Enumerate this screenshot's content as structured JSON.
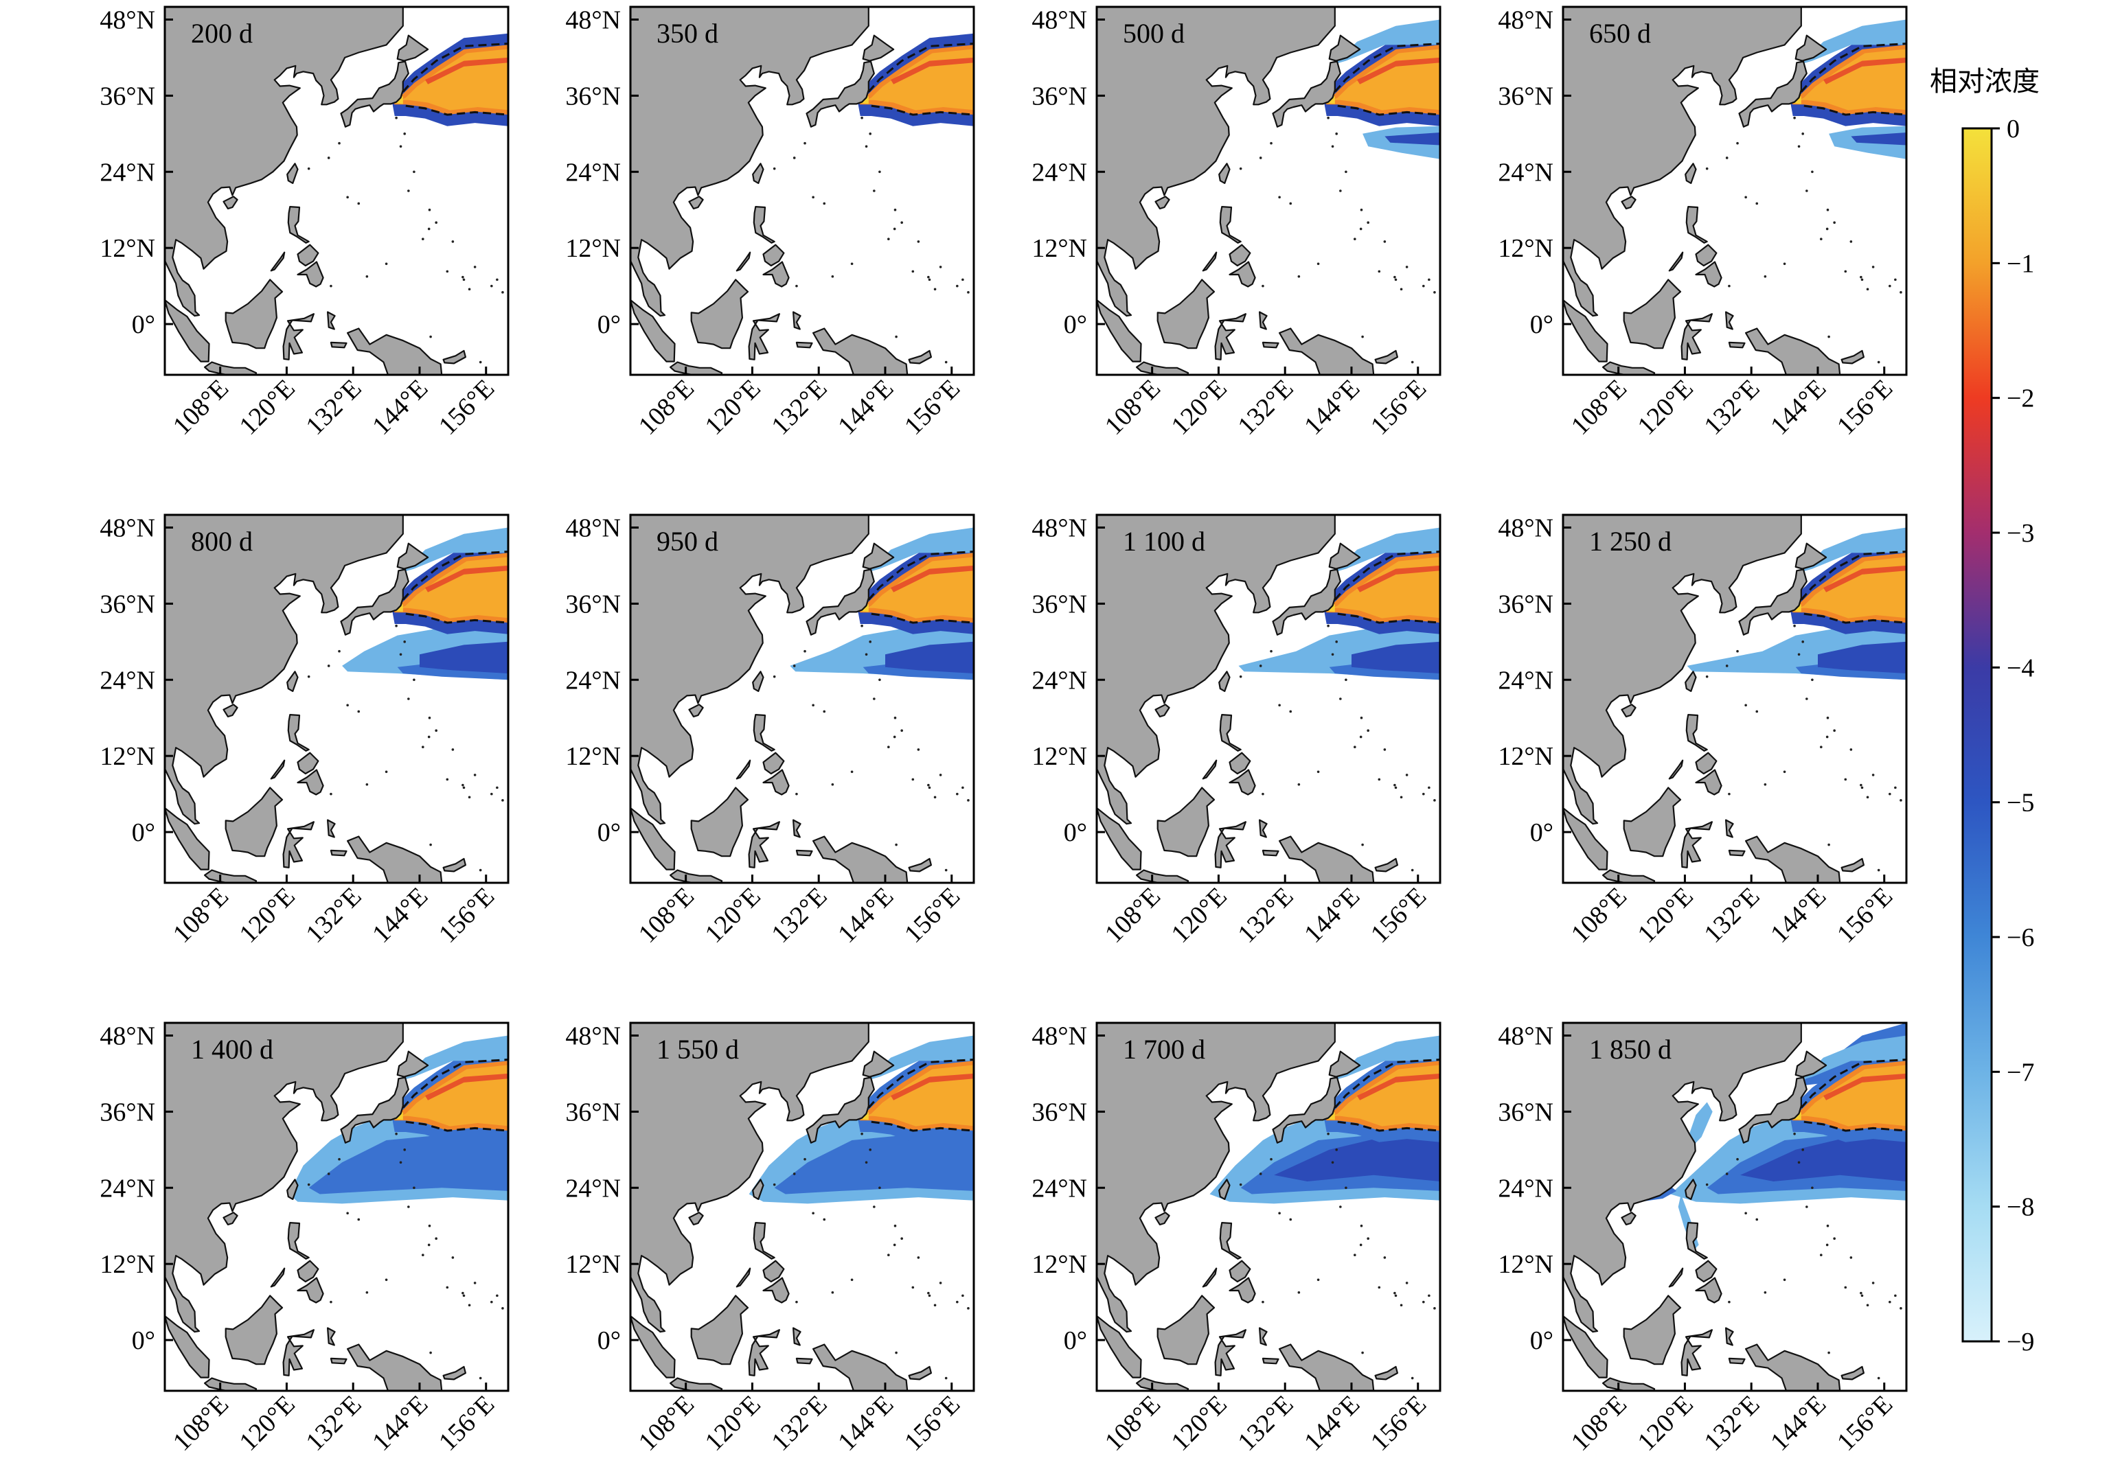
{
  "colorbar": {
    "title": "相对浓度",
    "ticks": [
      "0",
      "−1",
      "−2",
      "−3",
      "−4",
      "−5",
      "−6",
      "−7",
      "−8",
      "−9"
    ],
    "stops": [
      "#f4e13b",
      "#f3a12a",
      "#ee3b22",
      "#a32e6e",
      "#3b3ba6",
      "#2d56c2",
      "#3f86d6",
      "#6db3e6",
      "#a6dcf3",
      "#d8f1fb"
    ]
  },
  "axes": {
    "lat_ticks": [
      "48°N",
      "36°N",
      "24°N",
      "12°N",
      "0°"
    ],
    "lon_ticks": [
      "108°E",
      "120°E",
      "132°E",
      "144°E",
      "156°E"
    ]
  },
  "colors": {
    "land": "#a5a5a5",
    "coast": "#111111"
  },
  "panels": [
    {
      "label": "200 d",
      "day": 200
    },
    {
      "label": "350 d",
      "day": 350
    },
    {
      "label": "500 d",
      "day": 500
    },
    {
      "label": "650 d",
      "day": 650
    },
    {
      "label": "800 d",
      "day": 800
    },
    {
      "label": "950 d",
      "day": 950
    },
    {
      "label": "1 100 d",
      "day": 1100
    },
    {
      "label": "1 250 d",
      "day": 1250
    },
    {
      "label": "1 400 d",
      "day": 1400
    },
    {
      "label": "1 550 d",
      "day": 1550
    },
    {
      "label": "1 700 d",
      "day": 1700
    },
    {
      "label": "1 850 d",
      "day": 1850
    }
  ]
}
